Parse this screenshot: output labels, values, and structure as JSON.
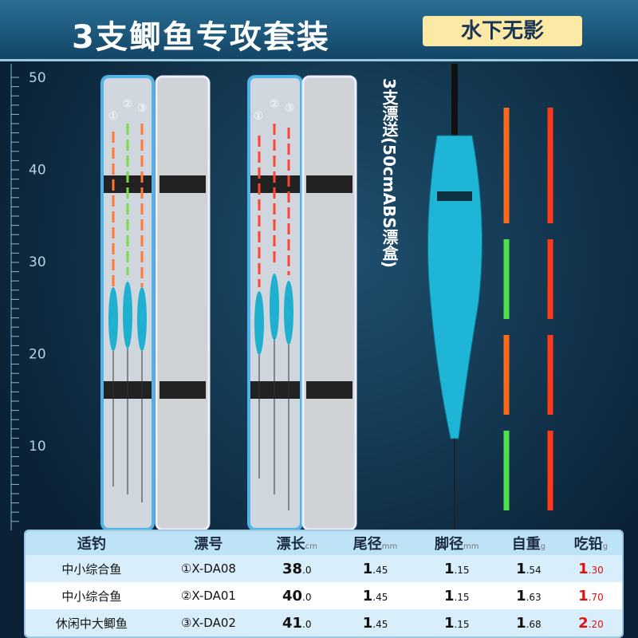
{
  "header": {
    "title": "3支鲫鱼专攻套装",
    "badge": "水下无影"
  },
  "ruler": [
    50,
    40,
    30,
    20,
    10
  ],
  "boxes": [
    {
      "marks": [
        "①",
        "②",
        "③"
      ]
    },
    {
      "marks": [
        "①",
        "②",
        "③"
      ]
    }
  ],
  "gift": "3支漂送(50cmABS漂盒)",
  "table": {
    "headers": [
      {
        "label": "适钓"
      },
      {
        "label": "漂号"
      },
      {
        "label": "漂长",
        "unit": "cm"
      },
      {
        "label": "尾径",
        "unit": "mm"
      },
      {
        "label": "脚径",
        "unit": "mm"
      },
      {
        "label": "自重",
        "unit": "g"
      },
      {
        "label": "吃铅",
        "unit": "g"
      }
    ],
    "rows": [
      [
        "中小综合鱼",
        "①X-DA08",
        [
          "38",
          ".0"
        ],
        [
          "1",
          ".45"
        ],
        [
          "1",
          ".15"
        ],
        [
          "1",
          ".54"
        ],
        [
          "1",
          ".30"
        ]
      ],
      [
        "中小综合鱼",
        "②X-DA01",
        [
          "40",
          ".0"
        ],
        [
          "1",
          ".45"
        ],
        [
          "1",
          ".15"
        ],
        [
          "1",
          ".63"
        ],
        [
          "1",
          ".70"
        ]
      ],
      [
        "休闲中大鲫鱼",
        "③X-DA02",
        [
          "41",
          ".0"
        ],
        [
          "1",
          ".45"
        ],
        [
          "1",
          ".15"
        ],
        [
          "1",
          ".68"
        ],
        [
          "2",
          ".20"
        ]
      ]
    ]
  }
}
